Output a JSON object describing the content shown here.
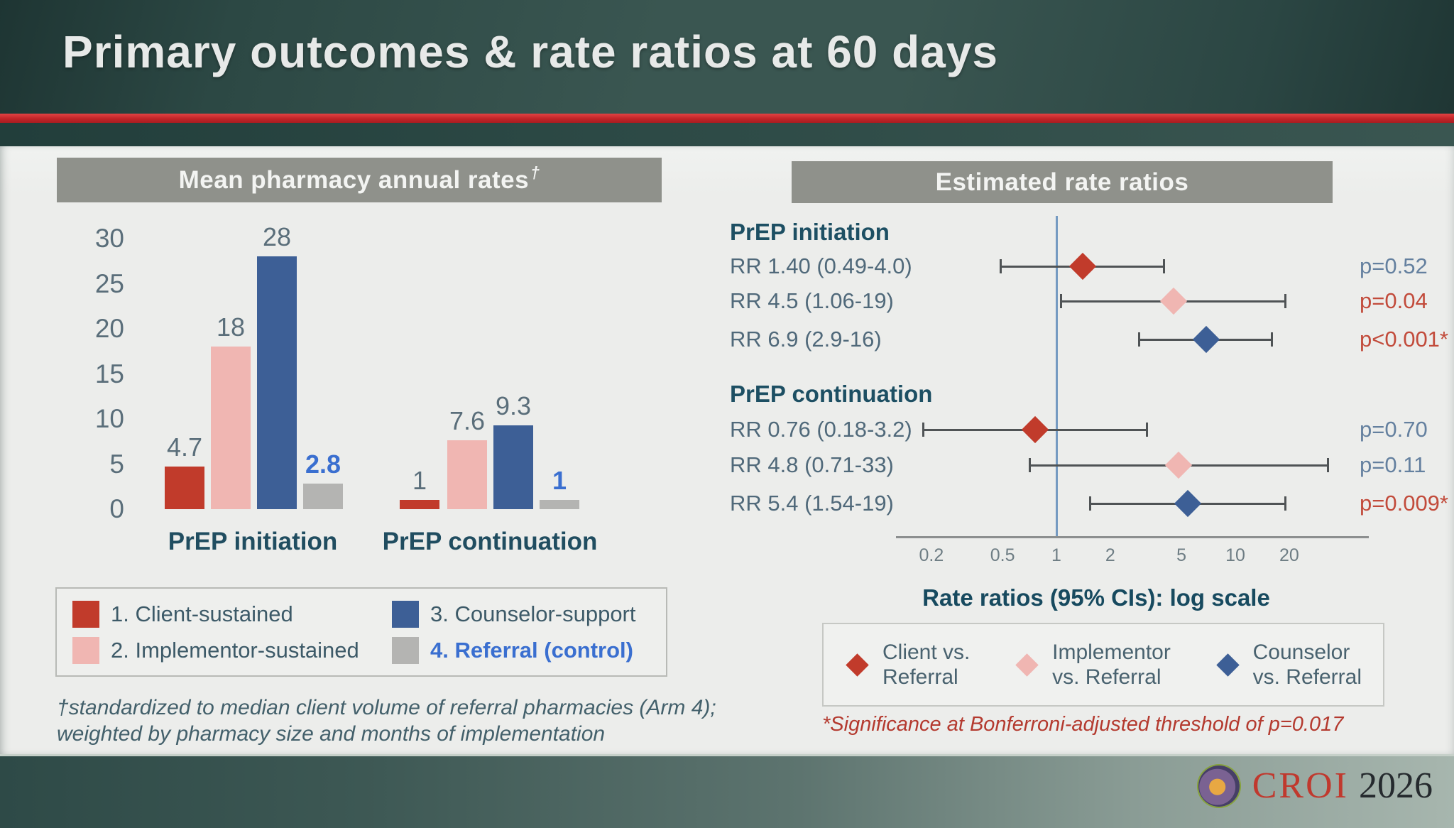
{
  "slide": {
    "title": "Primary outcomes & rate ratios at 60 days",
    "footer_logo": {
      "croi": "CROI",
      "year": "2026"
    }
  },
  "colors": {
    "title_bar_teal": "#2e4b47",
    "red_stripe": "#c9282d",
    "panel_header_gray": "#8f918b",
    "arm_client_red": "#c13b2b",
    "arm_implementor_pink": "#f0b6b2",
    "arm_counselor_blue": "#3d5f96",
    "arm_referral_gray": "#b4b4b2",
    "highlight_blue": "#3a6fd0",
    "significant_red": "#c24b3b",
    "nonsignificant_blue_gray": "#64809f"
  },
  "left_panel": {
    "header": "Mean pharmacy annual rates",
    "header_sup": "†",
    "footnote_line1": "†standardized to median client volume of referral pharmacies (Arm 4);",
    "footnote_line2": "weighted by pharmacy size and months of implementation",
    "legend": [
      {
        "label": "1. Client-sustained",
        "color": "#c13b2b",
        "text_color": "#3d5a68",
        "bold": false
      },
      {
        "label": "2. Implementor-sustained",
        "color": "#f0b6b2",
        "text_color": "#3d5a68",
        "bold": false
      },
      {
        "label": "3. Counselor-support",
        "color": "#3d5f96",
        "text_color": "#3d5a68",
        "bold": false
      },
      {
        "label": "4. Referral (control)",
        "color": "#b4b4b2",
        "text_color": "#3a6fd0",
        "bold": true
      }
    ]
  },
  "right_panel": {
    "header": "Estimated rate ratios",
    "axis_label": "Rate ratios (95% CIs): log scale",
    "footnote": "*Significance at Bonferroni-adjusted threshold of p=0.017",
    "legend": [
      {
        "line1": "Client vs.",
        "line2": "Referral",
        "color": "#c13b2b"
      },
      {
        "line1": "Implementor",
        "line2": "vs. Referral",
        "color": "#f0b6b2"
      },
      {
        "line1": "Counselor",
        "line2": "vs. Referral",
        "color": "#3d5f96"
      }
    ]
  },
  "chart_data": [
    {
      "type": "bar",
      "title": "Mean pharmacy annual rates†",
      "ylabel": "",
      "xlabel": "",
      "ylim": [
        0,
        30
      ],
      "yticks": [
        0,
        5,
        10,
        15,
        20,
        25,
        30
      ],
      "grid": false,
      "categories": [
        "PrEP initiation",
        "PrEP continuation"
      ],
      "series": [
        {
          "name": "1. Client-sustained",
          "values": [
            4.7,
            1
          ],
          "color": "#c13b2b"
        },
        {
          "name": "2. Implementor-sustained",
          "values": [
            18,
            7.6
          ],
          "color": "#f0b6b2"
        },
        {
          "name": "3. Counselor-support",
          "values": [
            28,
            9.3
          ],
          "color": "#3d5f96"
        },
        {
          "name": "4. Referral (control)",
          "values": [
            2.8,
            1
          ],
          "color": "#b4b4b2",
          "label_color": "#3a6fd0"
        }
      ],
      "value_labels": [
        [
          "4.7",
          "18",
          "28",
          "2.8"
        ],
        [
          "1",
          "7.6",
          "9.3",
          "1"
        ]
      ],
      "value_label_color": "#5a6e7a"
    },
    {
      "type": "scatter",
      "subtype": "forest",
      "title": "Estimated rate ratios",
      "xlabel": "Rate ratios (95% CIs): log scale",
      "xscale": "log",
      "xticks": [
        0.2,
        0.5,
        1,
        2,
        5,
        10,
        20
      ],
      "reference_line_x": 1,
      "groups": [
        {
          "label": "PrEP initiation",
          "rows": [
            {
              "label": "RR 1.40 (0.49-4.0)",
              "rr": 1.4,
              "ci": [
                0.49,
                4.0
              ],
              "p": "p=0.52",
              "p_color": "#64809f",
              "color": "#c13b2b",
              "arm": "Client vs. Referral"
            },
            {
              "label": "RR 4.5 (1.06-19)",
              "rr": 4.5,
              "ci": [
                1.06,
                19
              ],
              "p": "p=0.04",
              "p_color": "#c24b3b",
              "color": "#f0b6b2",
              "arm": "Implementor vs. Referral"
            },
            {
              "label": "RR 6.9 (2.9-16)",
              "rr": 6.9,
              "ci": [
                2.9,
                16
              ],
              "p": "p<0.001*",
              "p_color": "#c24b3b",
              "color": "#3d5f96",
              "arm": "Counselor vs. Referral"
            }
          ]
        },
        {
          "label": "PrEP continuation",
          "rows": [
            {
              "label": "RR 0.76 (0.18-3.2)",
              "rr": 0.76,
              "ci": [
                0.18,
                3.2
              ],
              "p": "p=0.70",
              "p_color": "#64809f",
              "color": "#c13b2b",
              "arm": "Client vs. Referral"
            },
            {
              "label": "RR 4.8 (0.71-33)",
              "rr": 4.8,
              "ci": [
                0.71,
                33
              ],
              "p": "p=0.11",
              "p_color": "#64809f",
              "color": "#f0b6b2",
              "arm": "Implementor vs. Referral"
            },
            {
              "label": "RR 5.4 (1.54-19)",
              "rr": 5.4,
              "ci": [
                1.54,
                19
              ],
              "p": "p=0.009*",
              "p_color": "#c24b3b",
              "color": "#3d5f96",
              "arm": "Counselor vs. Referral"
            }
          ]
        }
      ]
    }
  ]
}
